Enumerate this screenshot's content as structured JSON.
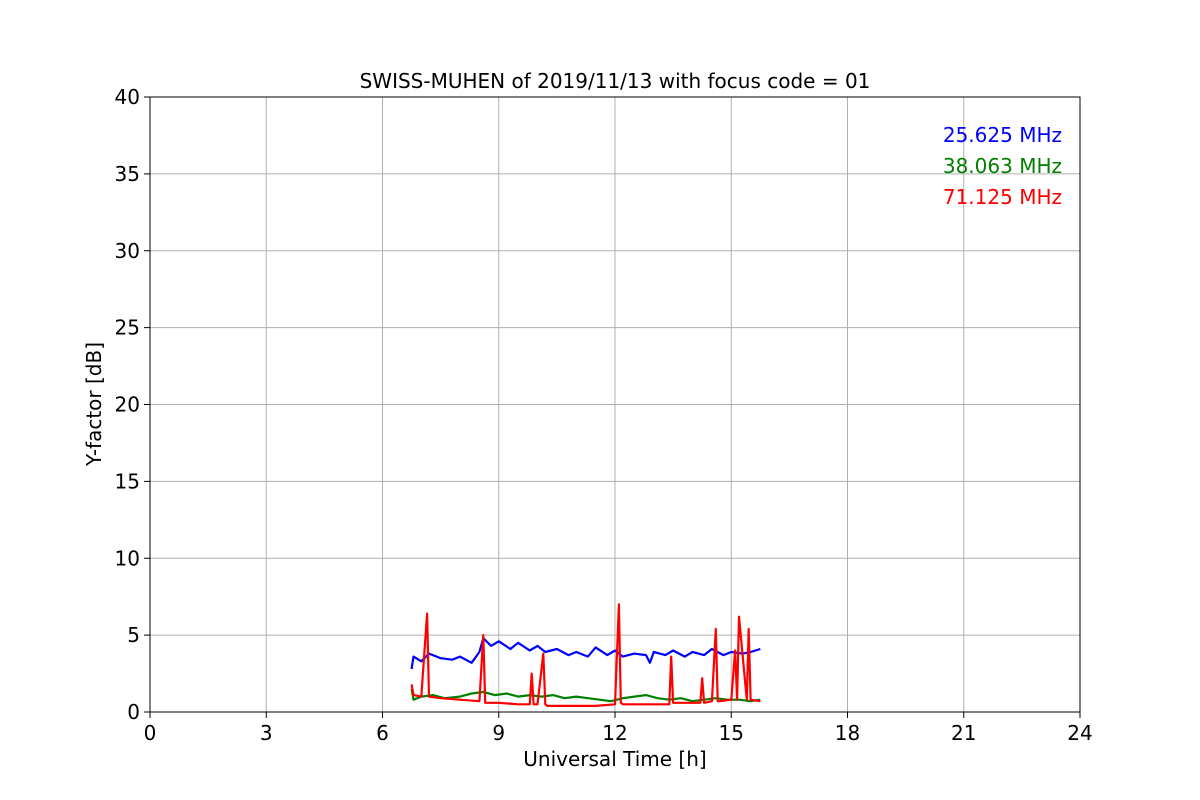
{
  "chart_data": {
    "type": "line",
    "title": "SWISS-MUHEN of 2019/11/13 with focus code = 01",
    "xlabel": "Universal Time [h]",
    "ylabel": "Y-factor [dB]",
    "xlim": [
      0,
      24
    ],
    "ylim": [
      0,
      40
    ],
    "xticks": [
      0,
      3,
      6,
      9,
      12,
      15,
      18,
      21,
      24
    ],
    "yticks": [
      0,
      5,
      10,
      15,
      20,
      25,
      30,
      35,
      40
    ],
    "grid": true,
    "legend_position": "top-right",
    "series": [
      {
        "name": "25.625 MHz",
        "color": "#0000ff",
        "x": [
          6.75,
          6.8,
          7.0,
          7.2,
          7.5,
          7.8,
          8.0,
          8.3,
          8.5,
          8.6,
          8.8,
          9.0,
          9.3,
          9.5,
          9.8,
          10.0,
          10.2,
          10.5,
          10.8,
          11.0,
          11.3,
          11.5,
          11.8,
          12.0,
          12.2,
          12.5,
          12.8,
          12.9,
          13.0,
          13.3,
          13.5,
          13.8,
          14.0,
          14.3,
          14.5,
          14.8,
          15.0,
          15.3,
          15.5,
          15.75
        ],
        "y": [
          2.8,
          3.6,
          3.3,
          3.8,
          3.5,
          3.4,
          3.6,
          3.2,
          3.9,
          4.8,
          4.3,
          4.6,
          4.1,
          4.5,
          4.0,
          4.3,
          3.9,
          4.1,
          3.7,
          3.9,
          3.6,
          4.2,
          3.7,
          4.0,
          3.6,
          3.8,
          3.7,
          3.2,
          3.9,
          3.7,
          4.0,
          3.6,
          3.9,
          3.7,
          4.1,
          3.7,
          3.9,
          3.8,
          3.9,
          4.1
        ]
      },
      {
        "name": "38.063 MHz",
        "color": "#008000",
        "x": [
          6.75,
          6.8,
          7.0,
          7.3,
          7.6,
          8.0,
          8.3,
          8.6,
          8.9,
          9.2,
          9.5,
          9.8,
          10.1,
          10.4,
          10.7,
          11.0,
          11.3,
          11.6,
          11.9,
          12.2,
          12.5,
          12.8,
          13.1,
          13.4,
          13.7,
          14.0,
          14.3,
          14.6,
          14.9,
          15.2,
          15.5,
          15.75
        ],
        "y": [
          1.5,
          0.8,
          1.0,
          1.1,
          0.9,
          1.0,
          1.2,
          1.3,
          1.1,
          1.2,
          1.0,
          1.1,
          1.0,
          1.1,
          0.9,
          1.0,
          0.9,
          0.8,
          0.7,
          0.9,
          1.0,
          1.1,
          0.9,
          0.8,
          0.9,
          0.7,
          0.8,
          0.9,
          0.8,
          0.8,
          0.7,
          0.8
        ]
      },
      {
        "name": "71.125 MHz",
        "color": "#ff0000",
        "x": [
          6.75,
          6.8,
          7.0,
          7.15,
          7.2,
          7.5,
          8.0,
          8.5,
          8.6,
          8.65,
          8.7,
          9.0,
          9.5,
          9.8,
          9.85,
          9.9,
          10.0,
          10.15,
          10.2,
          10.25,
          10.5,
          11.0,
          11.5,
          12.0,
          12.1,
          12.15,
          12.2,
          12.5,
          13.0,
          13.4,
          13.45,
          13.5,
          13.8,
          14.2,
          14.25,
          14.3,
          14.5,
          14.6,
          14.65,
          14.7,
          15.0,
          15.1,
          15.15,
          15.2,
          15.4,
          15.45,
          15.5,
          15.75
        ],
        "y": [
          1.8,
          1.1,
          1.0,
          6.4,
          1.0,
          0.9,
          0.8,
          0.7,
          5.0,
          0.6,
          0.6,
          0.6,
          0.5,
          0.5,
          2.5,
          0.5,
          0.5,
          3.8,
          0.5,
          0.4,
          0.4,
          0.4,
          0.4,
          0.5,
          7.0,
          0.6,
          0.5,
          0.5,
          0.5,
          0.5,
          3.6,
          0.6,
          0.6,
          0.6,
          2.2,
          0.6,
          0.7,
          5.4,
          0.7,
          0.7,
          0.8,
          4.0,
          0.8,
          6.2,
          0.8,
          5.4,
          0.8,
          0.7
        ]
      }
    ]
  }
}
